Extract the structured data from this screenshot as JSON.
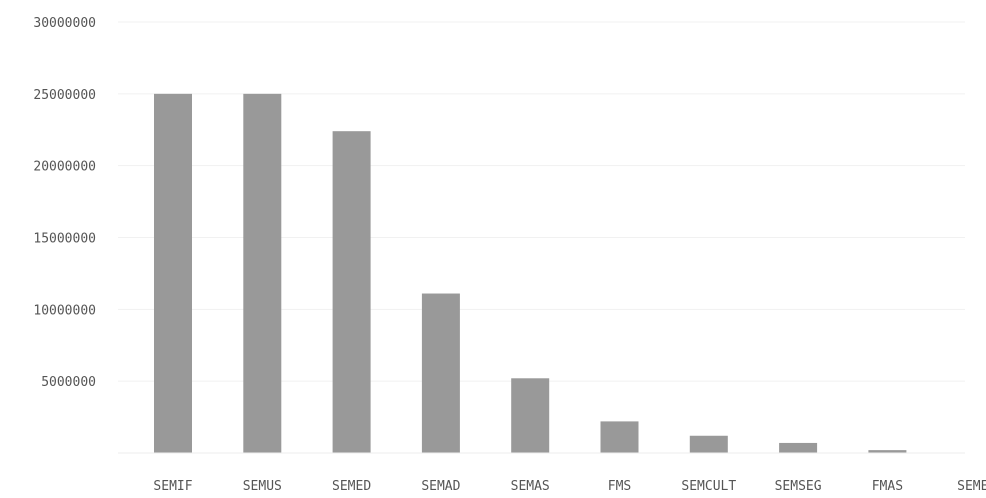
{
  "chart_data": {
    "type": "bar",
    "title": "",
    "xlabel": "",
    "ylabel": "",
    "categories": [
      "SEMIF",
      "SEMUS",
      "SEMED",
      "SEMAD",
      "SEMAS",
      "FMS",
      "SEMCULT",
      "SEMSEG",
      "FMAS",
      "SEMES"
    ],
    "values": [
      25000000,
      25000000,
      22400000,
      11100000,
      5200000,
      2200000,
      1200000,
      700000,
      200000,
      0
    ],
    "yticks": [
      5000000,
      10000000,
      15000000,
      20000000,
      25000000,
      30000000
    ],
    "ytick_labels": [
      "5000000",
      "10000000",
      "15000000",
      "20000000",
      "25000000",
      "30000000"
    ],
    "ylim": [
      0,
      30000000
    ],
    "grid": true,
    "legend": "none",
    "colors": {
      "bar": "#999999",
      "grid": "#f1f1f1",
      "text": "#555555"
    }
  }
}
